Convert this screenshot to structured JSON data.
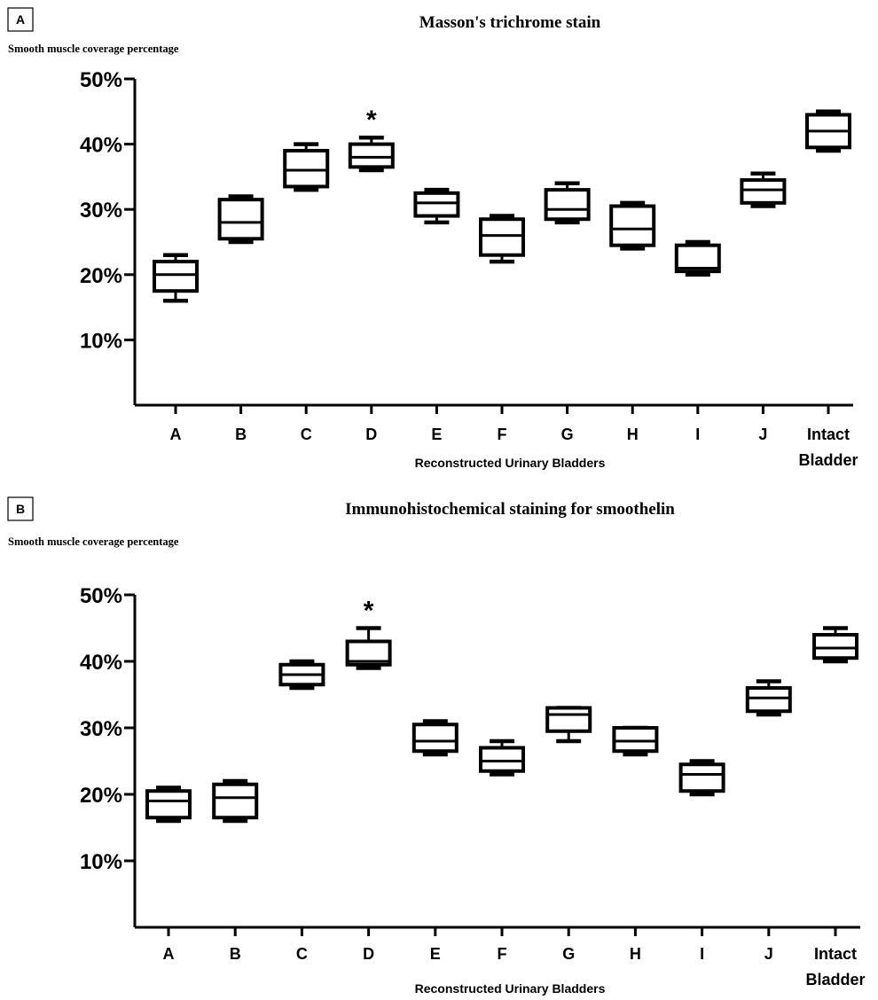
{
  "chart_data": [
    {
      "type": "box",
      "panel_label": "A",
      "title": "Masson's trichrome stain",
      "ylabel": "Smooth  muscle coverage  percentage",
      "xlabel": "Reconstructed Urinary Bladders",
      "ylim": [
        0,
        50
      ],
      "yticks": [
        {
          "value": 10,
          "label": "10%"
        },
        {
          "value": 20,
          "label": "20%"
        },
        {
          "value": 30,
          "label": "30%"
        },
        {
          "value": 40,
          "label": "40%"
        },
        {
          "value": 50,
          "label": "50%"
        }
      ],
      "categories": [
        "A",
        "B",
        "C",
        "D",
        "E",
        "F",
        "G",
        "H",
        "I",
        "J",
        "Intact Bladder"
      ],
      "series": [
        {
          "category": "A",
          "min": 16,
          "q1": 17.5,
          "median": 20,
          "q3": 22,
          "max": 23
        },
        {
          "category": "B",
          "min": 25,
          "q1": 25.5,
          "median": 28,
          "q3": 31.5,
          "max": 32
        },
        {
          "category": "C",
          "min": 33,
          "q1": 33.5,
          "median": 36,
          "q3": 39,
          "max": 40
        },
        {
          "category": "D",
          "min": 36,
          "q1": 36.5,
          "median": 38,
          "q3": 40,
          "max": 41
        },
        {
          "category": "E",
          "min": 28,
          "q1": 29,
          "median": 31,
          "q3": 32.5,
          "max": 33
        },
        {
          "category": "F",
          "min": 22,
          "q1": 23,
          "median": 26,
          "q3": 28.5,
          "max": 29
        },
        {
          "category": "G",
          "min": 28,
          "q1": 28.5,
          "median": 30,
          "q3": 33,
          "max": 34
        },
        {
          "category": "H",
          "min": 24,
          "q1": 24.5,
          "median": 27,
          "q3": 30.5,
          "max": 31
        },
        {
          "category": "I",
          "min": 20,
          "q1": 20.5,
          "median": 21,
          "q3": 24.5,
          "max": 25
        },
        {
          "category": "J",
          "min": 30.5,
          "q1": 31,
          "median": 33,
          "q3": 34.5,
          "max": 35.5
        },
        {
          "category": "Intact Bladder",
          "min": 39,
          "q1": 39.5,
          "median": 42,
          "q3": 44.5,
          "max": 45
        }
      ],
      "annotations": [
        {
          "category": "D",
          "text": "*"
        }
      ]
    },
    {
      "type": "box",
      "panel_label": "B",
      "title": "Immunohistochemical staining  for smoothelin",
      "ylabel": "Smooth  muscle coverage  percentage",
      "xlabel": "Reconstructed Urinary Bladders",
      "ylim": [
        0,
        50
      ],
      "yticks": [
        {
          "value": 10,
          "label": "10%"
        },
        {
          "value": 20,
          "label": "20%"
        },
        {
          "value": 30,
          "label": "30%"
        },
        {
          "value": 40,
          "label": "40%"
        },
        {
          "value": 50,
          "label": "50%"
        }
      ],
      "categories": [
        "A",
        "B",
        "C",
        "D",
        "E",
        "F",
        "G",
        "H",
        "I",
        "J",
        "Intact Bladder"
      ],
      "series": [
        {
          "category": "A",
          "min": 16,
          "q1": 16.5,
          "median": 19,
          "q3": 20.5,
          "max": 21
        },
        {
          "category": "B",
          "min": 16,
          "q1": 16.5,
          "median": 19.5,
          "q3": 21.5,
          "max": 22
        },
        {
          "category": "C",
          "min": 36,
          "q1": 36.5,
          "median": 38,
          "q3": 39.5,
          "max": 40
        },
        {
          "category": "D",
          "min": 39,
          "q1": 39.5,
          "median": 40,
          "q3": 43,
          "max": 45
        },
        {
          "category": "E",
          "min": 26,
          "q1": 26.5,
          "median": 28,
          "q3": 30.5,
          "max": 31
        },
        {
          "category": "F",
          "min": 23,
          "q1": 23.5,
          "median": 25,
          "q3": 27,
          "max": 28
        },
        {
          "category": "G",
          "min": 28,
          "q1": 29.5,
          "median": 32,
          "q3": 33,
          "max": 33
        },
        {
          "category": "H",
          "min": 26,
          "q1": 26.5,
          "median": 28,
          "q3": 30,
          "max": 30
        },
        {
          "category": "I",
          "min": 20,
          "q1": 20.5,
          "median": 23,
          "q3": 24.5,
          "max": 25
        },
        {
          "category": "J",
          "min": 32,
          "q1": 32.5,
          "median": 34.5,
          "q3": 36,
          "max": 37
        },
        {
          "category": "Intact Bladder",
          "min": 40,
          "q1": 40.5,
          "median": 42,
          "q3": 44,
          "max": 45
        }
      ],
      "annotations": [
        {
          "category": "D",
          "text": "*"
        }
      ]
    }
  ]
}
